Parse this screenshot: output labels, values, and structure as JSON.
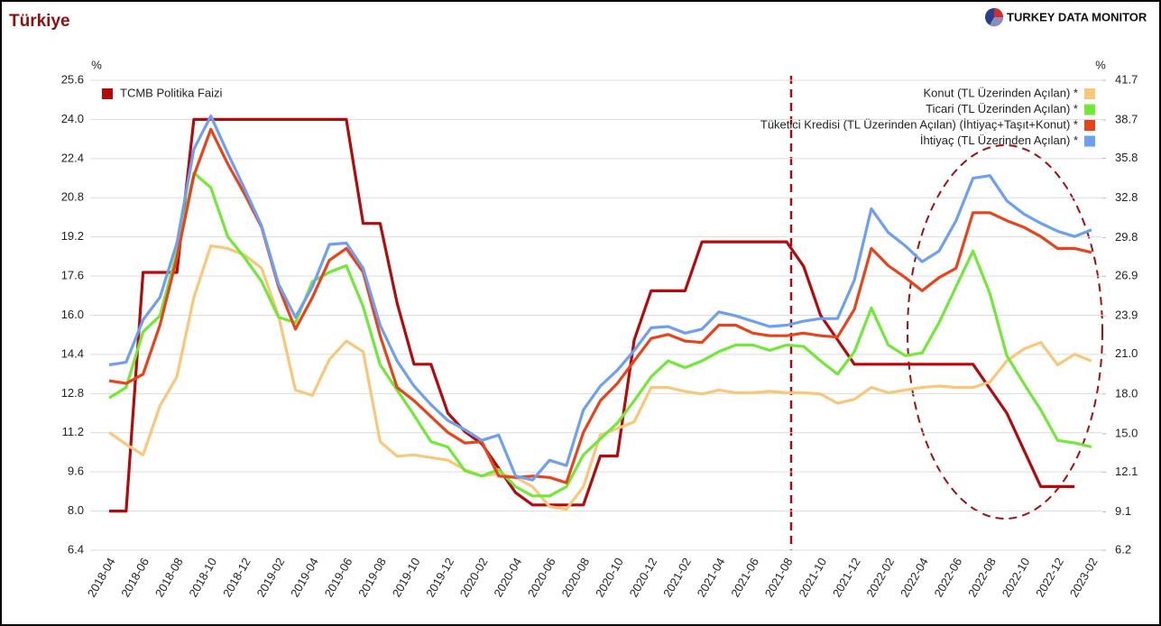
{
  "chart_data": {
    "type": "line",
    "title": "Türkiye",
    "source": "TURKEY DATA MONITOR",
    "ylabel": "%",
    "y2label": "%",
    "categories": [
      "2018-04",
      null,
      "2018-06",
      null,
      "2018-08",
      null,
      "2018-10",
      null,
      "2018-12",
      null,
      "2019-02",
      null,
      "2019-04",
      null,
      "2019-06",
      null,
      "2019-08",
      null,
      "2019-10",
      null,
      "2019-12",
      null,
      "2020-02",
      null,
      "2020-04",
      null,
      "2020-06",
      null,
      "2020-08",
      null,
      "2020-10",
      null,
      "2020-12",
      null,
      "2021-02",
      null,
      "2021-04",
      null,
      "2021-06",
      null,
      "2021-08",
      null,
      "2021-10",
      null,
      "2021-12",
      null,
      "2022-02",
      null,
      "2022-04",
      null,
      "2022-06",
      null,
      "2022-08",
      null,
      "2022-10",
      null,
      "2022-12",
      null,
      "2023-02"
    ],
    "ylim": [
      6.4,
      25.6
    ],
    "yticks": [
      6.4,
      {
        "value": 8,
        "label": "8.0"
      },
      9.6,
      11.2,
      12.8,
      14.4,
      {
        "value": 16,
        "label": "16.0"
      },
      17.6,
      19.2,
      20.8,
      22.4,
      {
        "value": 24,
        "label": "24.0"
      },
      25.6
    ],
    "y2lim": [
      6.2,
      41.7
    ],
    "y2ticks": [
      6.2,
      9.1,
      12.1,
      {
        "value": 15,
        "label": "15.0"
      },
      {
        "value": 18,
        "label": "18.0"
      },
      {
        "value": 21,
        "label": "21.0"
      },
      23.9,
      26.9,
      29.8,
      32.8,
      35.8,
      38.7,
      41.7
    ],
    "grid": true,
    "series": [
      {
        "name": "TCMB Politika Faizi",
        "color": "#b30a0e",
        "axis": "y",
        "values": [
          8,
          8,
          17.75,
          17.75,
          17.75,
          24,
          24,
          24,
          24,
          24,
          24,
          24,
          24,
          24,
          24,
          19.75,
          19.75,
          16.5,
          14,
          14,
          12,
          11.25,
          10.75,
          9.75,
          8.75,
          8.25,
          8.25,
          8.25,
          8.25,
          10.25,
          10.25,
          15,
          17,
          17,
          17,
          19,
          19,
          19,
          19,
          19,
          19,
          18,
          16,
          15,
          14,
          14,
          14,
          14,
          14,
          14,
          14,
          14,
          13,
          12,
          10.5,
          9,
          9,
          9,
          null
        ]
      },
      {
        "name": "Konut (TL Üzerinden Açılan) *",
        "color": "#f8c77a",
        "axis": "y2",
        "values": [
          15.1,
          14.2,
          13.4,
          17.1,
          19.3,
          25.3,
          29.2,
          29.0,
          28.5,
          27.5,
          23.9,
          18.3,
          17.9,
          20.6,
          22.0,
          21.2,
          14.4,
          13.3,
          13.4,
          13.2,
          13.0,
          12.3,
          11.8,
          12.0,
          11.7,
          11.0,
          9.5,
          9.3,
          11.0,
          14.9,
          15.4,
          15.9,
          18.5,
          18.5,
          18.2,
          18.0,
          18.3,
          18.1,
          18.1,
          18.2,
          18.1,
          18.1,
          18.0,
          17.3,
          17.6,
          18.5,
          18.1,
          18.3,
          18.5,
          18.6,
          18.5,
          18.5,
          18.9,
          20.5,
          21.4,
          21.9,
          20.2,
          21.0,
          20.5
        ]
      },
      {
        "name": "Ticari (TL Üzerinden Açılan) *",
        "color": "#72e838",
        "axis": "y2",
        "values": [
          17.7,
          18.5,
          22.7,
          23.9,
          28.7,
          34.7,
          33.6,
          29.9,
          28.3,
          26.5,
          23.8,
          23.4,
          26.5,
          27.2,
          27.7,
          24.6,
          20.2,
          18.3,
          16.4,
          14.4,
          14.0,
          12.2,
          11.8,
          12.3,
          11.0,
          10.3,
          10.3,
          11.0,
          13.4,
          14.6,
          15.8,
          17.5,
          19.3,
          20.5,
          20.0,
          20.5,
          21.2,
          21.7,
          21.7,
          21.3,
          21.7,
          21.6,
          20.5,
          19.5,
          21.2,
          24.5,
          21.7,
          20.9,
          21.1,
          23.4,
          26.1,
          28.8,
          25.6,
          20.9,
          18.8,
          16.8,
          14.5,
          14.3,
          14.0
        ]
      },
      {
        "name": "Tüketici Kredisi (TL Üzerinden Açılan) (İhtiyaç+Taşıt+Konut) *",
        "color": "#e8441c",
        "axis": "y2",
        "values": [
          19.0,
          18.8,
          19.5,
          23.2,
          28.3,
          34.5,
          38.0,
          35.4,
          33.1,
          30.6,
          26.1,
          22.9,
          25.3,
          28.1,
          29.0,
          27.2,
          22.4,
          18.5,
          17.5,
          16.3,
          15.1,
          14.3,
          14.4,
          11.8,
          11.7,
          11.8,
          11.7,
          11.3,
          15.1,
          17.5,
          18.8,
          20.5,
          22.2,
          22.5,
          22.0,
          21.9,
          23.2,
          23.2,
          22.6,
          22.4,
          22.4,
          22.6,
          22.4,
          22.3,
          24.4,
          29.0,
          27.7,
          26.8,
          25.8,
          26.8,
          27.5,
          31.7,
          31.7,
          31.1,
          30.6,
          29.9,
          29.0,
          29.0,
          28.7
        ]
      },
      {
        "name": "İhtiyaç (TL Üzerinden Açılan) *",
        "color": "#6f9ff0",
        "axis": "y2",
        "values": [
          20.2,
          20.4,
          23.6,
          25.3,
          29.4,
          36.5,
          39.0,
          36.2,
          33.5,
          30.7,
          26.3,
          23.8,
          26.1,
          29.3,
          29.4,
          27.5,
          23.2,
          20.5,
          18.6,
          17.2,
          16.0,
          15.3,
          14.5,
          14.9,
          11.8,
          11.5,
          13.0,
          12.6,
          16.8,
          18.6,
          19.8,
          21.3,
          23.0,
          23.1,
          22.6,
          22.9,
          24.2,
          23.9,
          23.5,
          23.1,
          23.2,
          23.5,
          23.7,
          23.7,
          26.6,
          32.0,
          30.2,
          29.2,
          28.0,
          28.8,
          31.1,
          34.3,
          34.5,
          32.6,
          31.6,
          30.9,
          30.3,
          29.9,
          30.4
        ]
      }
    ]
  }
}
